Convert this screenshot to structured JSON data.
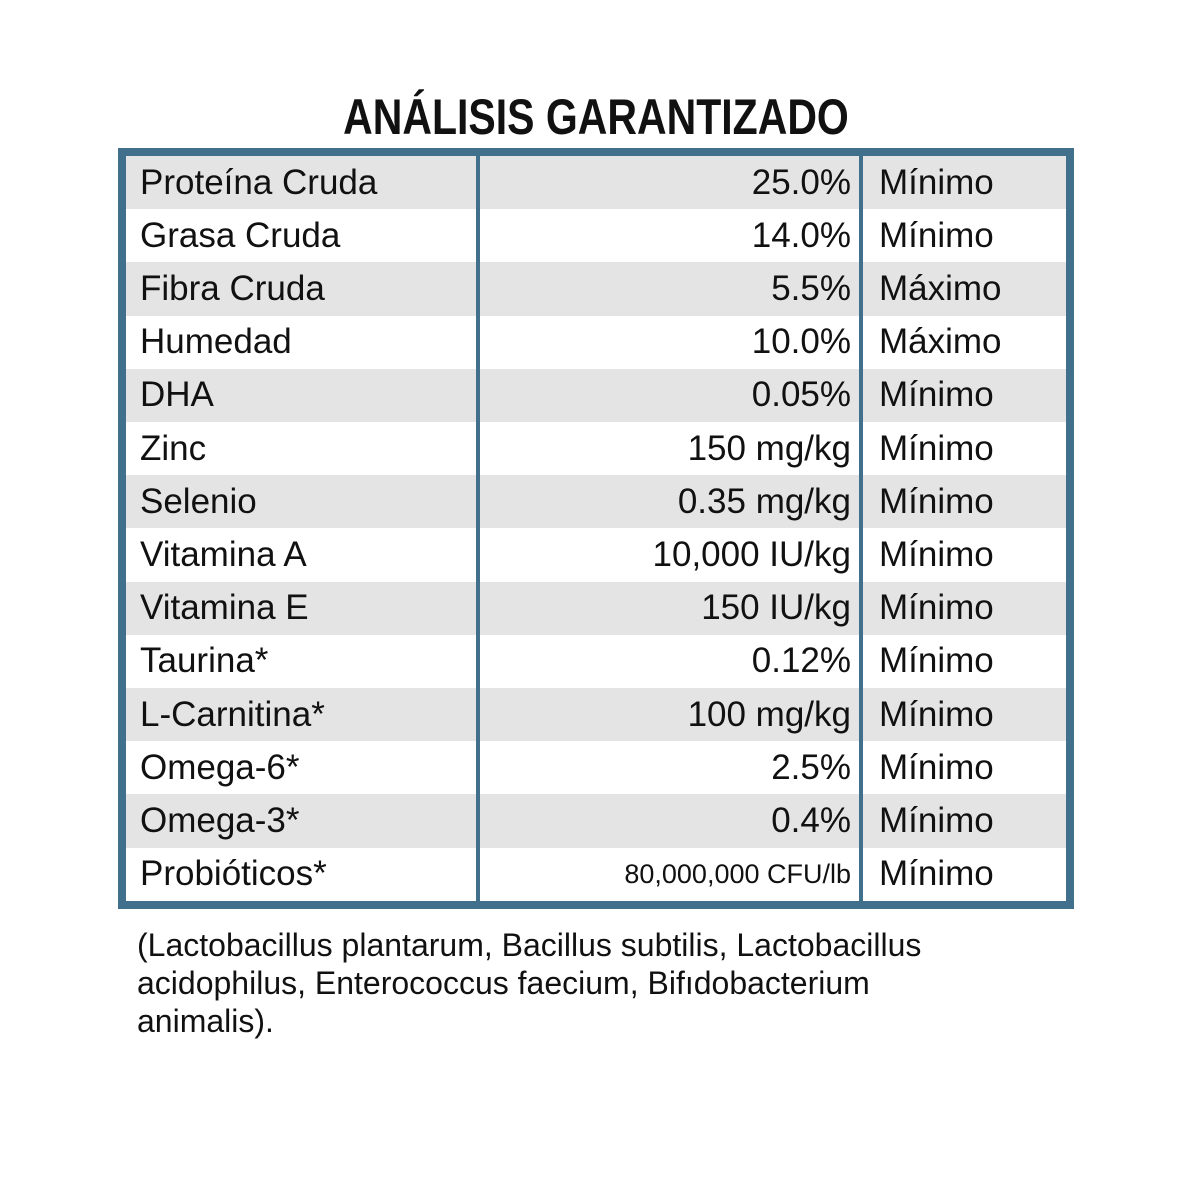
{
  "title": "ANÁLISIS GARANTIZADO",
  "colors": {
    "border": "#41708C",
    "stripe": "#E4E4E4",
    "text": "#111111",
    "background": "#FFFFFF"
  },
  "table": {
    "rows": [
      {
        "name": "Proteína Cruda",
        "value": "25.0%",
        "qualifier": "Mínimo"
      },
      {
        "name": "Grasa Cruda",
        "value": "14.0%",
        "qualifier": "Mínimo"
      },
      {
        "name": "Fibra Cruda",
        "value": "5.5%",
        "qualifier": "Máximo"
      },
      {
        "name": "Humedad",
        "value": "10.0%",
        "qualifier": "Máximo"
      },
      {
        "name": "DHA",
        "value": "0.05%",
        "qualifier": "Mínimo"
      },
      {
        "name": "Zinc",
        "value": "150 mg/kg",
        "qualifier": "Mínimo"
      },
      {
        "name": "Selenio",
        "value": "0.35 mg/kg",
        "qualifier": "Mínimo"
      },
      {
        "name": "Vitamina A",
        "value": "10,000 IU/kg",
        "qualifier": "Mínimo"
      },
      {
        "name": "Vitamina E",
        "value": "150 IU/kg",
        "qualifier": "Mínimo"
      },
      {
        "name": "Taurina*",
        "value": "0.12%",
        "qualifier": "Mínimo"
      },
      {
        "name": "L-Carnitina*",
        "value": "100 mg/kg",
        "qualifier": "Mínimo"
      },
      {
        "name": "Omega-6*",
        "value": "2.5%",
        "qualifier": "Mínimo"
      },
      {
        "name": "Omega-3*",
        "value": "0.4%",
        "qualifier": "Mínimo"
      },
      {
        "name": "Probióticos*",
        "value": "80,000,000 CFU/lb",
        "qualifier": "Mínimo"
      }
    ]
  },
  "footnote": {
    "lines": [
      "(Lactobacillus plantarum, Bacillus subtilis, Lactobacillus",
      "acidophilus, Enterococcus faecium, Bifıdobacterium",
      "animalis)."
    ]
  }
}
